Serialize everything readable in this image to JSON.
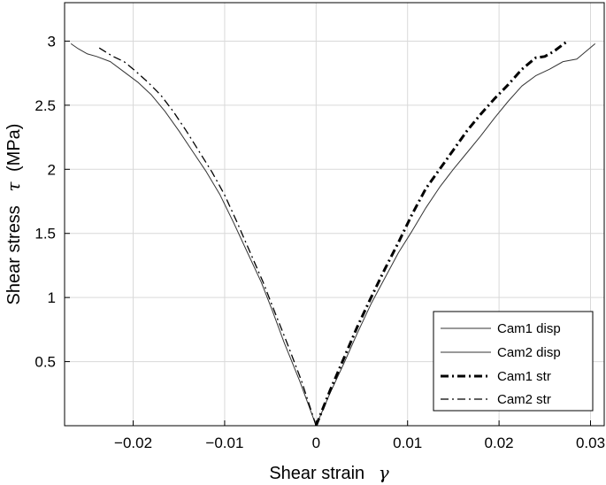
{
  "chart_data": {
    "type": "line",
    "xlabel": "Shear strain",
    "xlabel_symbol": "γ",
    "ylabel": "Shear stress",
    "ylabel_symbol": "τ",
    "ylabel_unit": "(MPa)",
    "xlim": [
      -0.0275,
      0.0315
    ],
    "ylim": [
      0,
      3.3
    ],
    "xticks": [
      -0.02,
      -0.01,
      0,
      0.01,
      0.02,
      0.03
    ],
    "xtick_labels": [
      "−0.02",
      "−0.01",
      "0",
      "0.01",
      "0.02",
      "0.03"
    ],
    "yticks": [
      0.5,
      1,
      1.5,
      2,
      2.5,
      3
    ],
    "ytick_labels": [
      "0.5",
      "1",
      "1.5",
      "2",
      "2.5",
      "3"
    ],
    "grid": true,
    "legend_position": "bottom-right",
    "series": [
      {
        "name": "Cam1 disp",
        "style": "solid-thin",
        "color": "#333333",
        "x": [
          0.0,
          -0.0018,
          -0.0035,
          -0.0048,
          -0.006,
          -0.0075,
          -0.009,
          -0.0105,
          -0.012,
          -0.0135,
          -0.015,
          -0.0165,
          -0.018,
          -0.0195,
          -0.021,
          -0.0225,
          -0.024,
          -0.025,
          -0.026,
          -0.0268
        ],
        "y": [
          0.0,
          0.35,
          0.65,
          0.9,
          1.12,
          1.35,
          1.58,
          1.8,
          1.98,
          2.14,
          2.3,
          2.45,
          2.58,
          2.68,
          2.76,
          2.84,
          2.88,
          2.9,
          2.94,
          2.98
        ]
      },
      {
        "name": "Cam2 disp",
        "style": "solid-thin",
        "color": "#333333",
        "x": [
          0.0,
          0.0015,
          0.003,
          0.0045,
          0.006,
          0.0075,
          0.009,
          0.0105,
          0.012,
          0.0135,
          0.015,
          0.0165,
          0.018,
          0.0195,
          0.021,
          0.0225,
          0.024,
          0.0255,
          0.027,
          0.0285,
          0.0305
        ],
        "y": [
          0.0,
          0.25,
          0.48,
          0.72,
          0.95,
          1.15,
          1.35,
          1.52,
          1.7,
          1.86,
          2.0,
          2.13,
          2.26,
          2.4,
          2.53,
          2.65,
          2.73,
          2.78,
          2.84,
          2.86,
          2.98
        ]
      },
      {
        "name": "Cam1 str",
        "style": "dashdot-thick",
        "color": "#000000",
        "x": [
          0.0,
          0.0015,
          0.003,
          0.0045,
          0.006,
          0.0075,
          0.009,
          0.0105,
          0.012,
          0.0135,
          0.015,
          0.0165,
          0.018,
          0.0195,
          0.021,
          0.0225,
          0.024,
          0.025,
          0.026,
          0.0273
        ],
        "y": [
          0.0,
          0.27,
          0.52,
          0.77,
          1.0,
          1.22,
          1.43,
          1.65,
          1.85,
          2.0,
          2.15,
          2.3,
          2.43,
          2.55,
          2.66,
          2.78,
          2.87,
          2.88,
          2.92,
          2.99
        ]
      },
      {
        "name": "Cam2 str",
        "style": "dashdot-thin",
        "color": "#000000",
        "x": [
          0.0,
          -0.0016,
          -0.0032,
          -0.0046,
          -0.0058,
          -0.0072,
          -0.0086,
          -0.01,
          -0.0114,
          -0.0128,
          -0.0142,
          -0.0156,
          -0.017,
          -0.0184,
          -0.0198,
          -0.021,
          -0.0222,
          -0.0238
        ],
        "y": [
          0.0,
          0.35,
          0.65,
          0.9,
          1.12,
          1.35,
          1.58,
          1.8,
          1.98,
          2.14,
          2.3,
          2.45,
          2.58,
          2.68,
          2.77,
          2.84,
          2.88,
          2.95
        ]
      }
    ]
  }
}
